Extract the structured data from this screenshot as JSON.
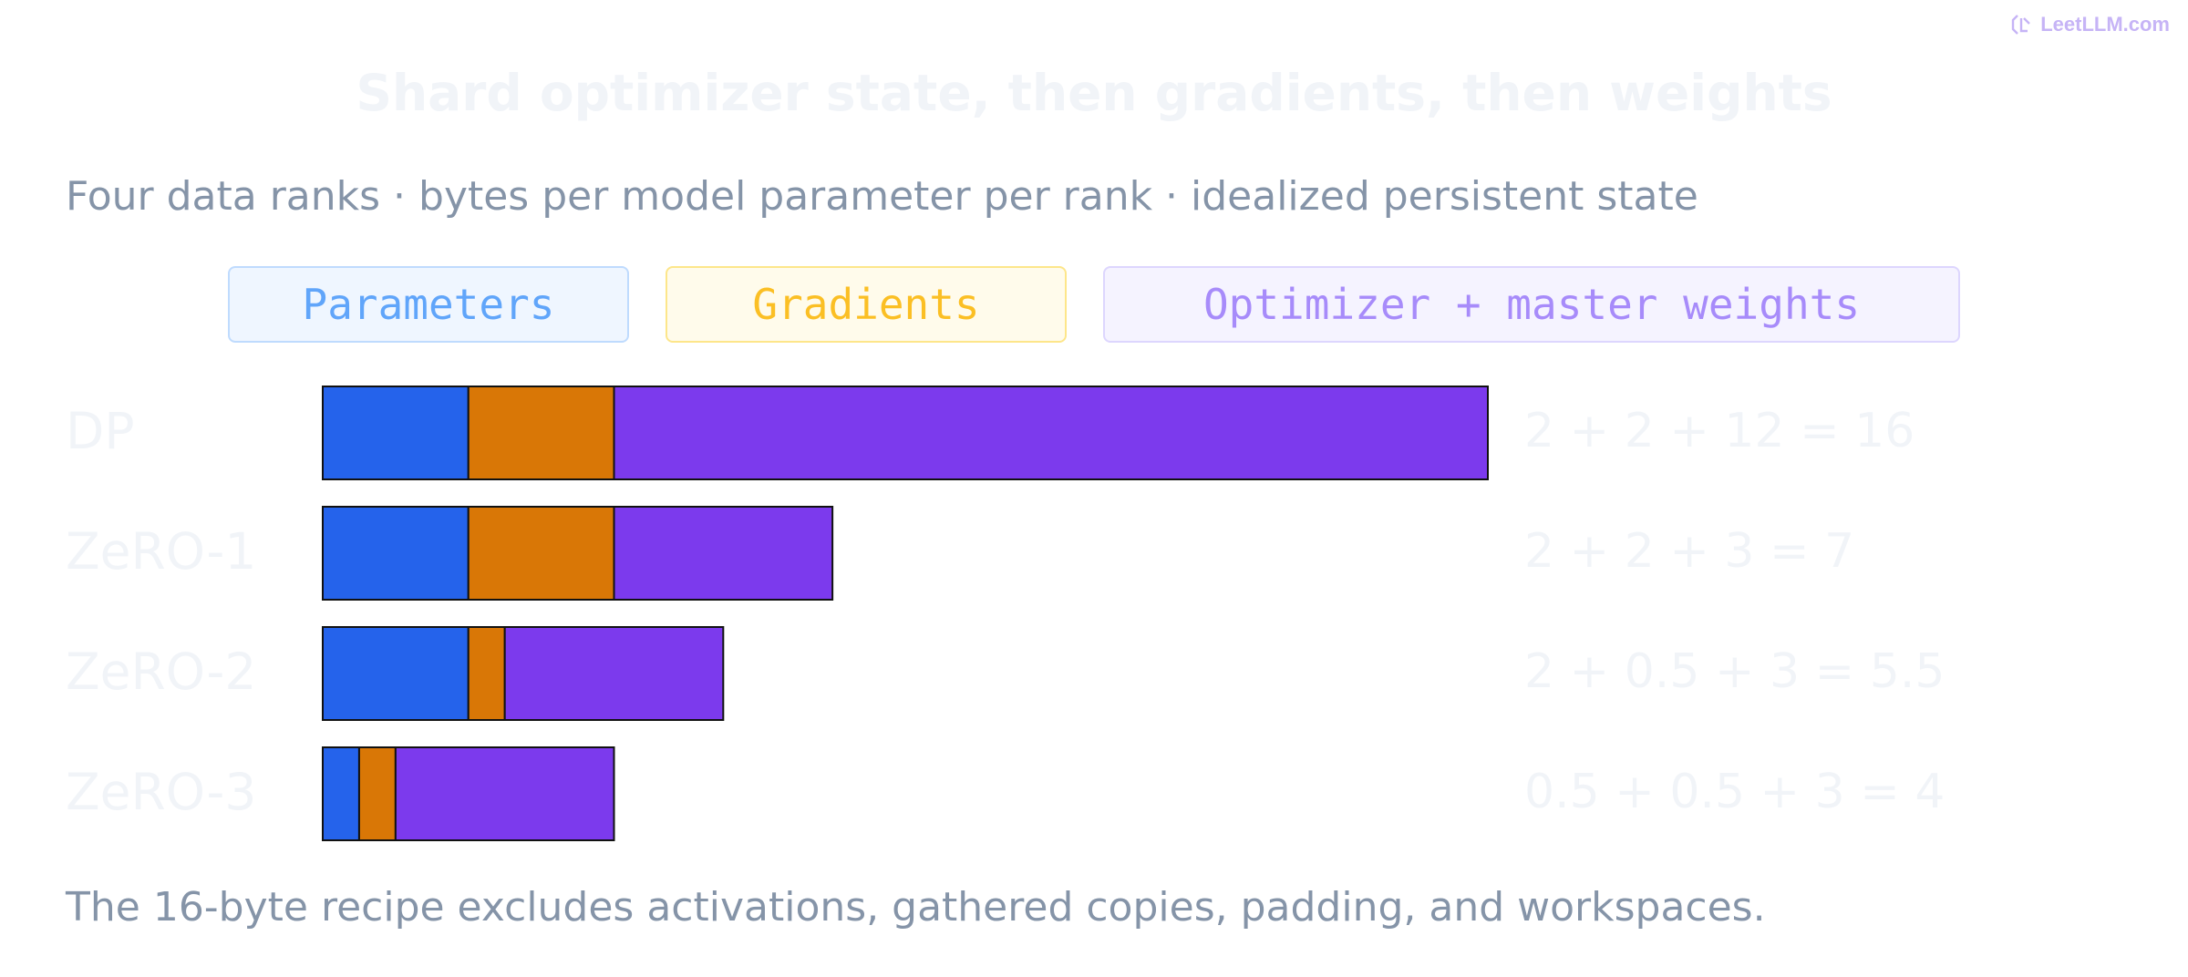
{
  "brand": {
    "text": "LeetLLM.com",
    "color": "#c6b4f6"
  },
  "chart_data": {
    "type": "bar",
    "orientation": "horizontal",
    "stacked": true,
    "title": "Shard optimizer state, then gradients, then weights",
    "subtitle": "Four data ranks · bytes per model parameter per rank · idealized persistent state",
    "footnote": "The 16-byte recipe excludes activations, gathered copies, padding, and workspaces.",
    "categories": [
      "DP",
      "ZeRO-1",
      "ZeRO-2",
      "ZeRO-3"
    ],
    "annotations": [
      "2 + 2 + 12 = 16",
      "2 + 2 + 3 = 7",
      "2 + 0.5 + 3 = 5.5",
      "0.5 + 0.5 + 3 = 4"
    ],
    "series": [
      {
        "name": "Parameters",
        "values": [
          2,
          2,
          2,
          0.5
        ],
        "color": "#2563eb",
        "legend_bg": "#eff6ff",
        "legend_border": "#bfdbfe",
        "legend_text": "#60a5fa"
      },
      {
        "name": "Gradients",
        "values": [
          2,
          2,
          0.5,
          0.5
        ],
        "color": "#d97706",
        "legend_bg": "#fffbeb",
        "legend_border": "#fde68a",
        "legend_text": "#fbbf24"
      },
      {
        "name": "Optimizer + master weights",
        "values": [
          12,
          3,
          3,
          3
        ],
        "color": "#7c3aed",
        "legend_bg": "#f5f3ff",
        "legend_border": "#ddd6fe",
        "legend_text": "#a78bfa"
      }
    ],
    "xlim": [
      0,
      16
    ],
    "grid": false,
    "legend_position": "top"
  }
}
